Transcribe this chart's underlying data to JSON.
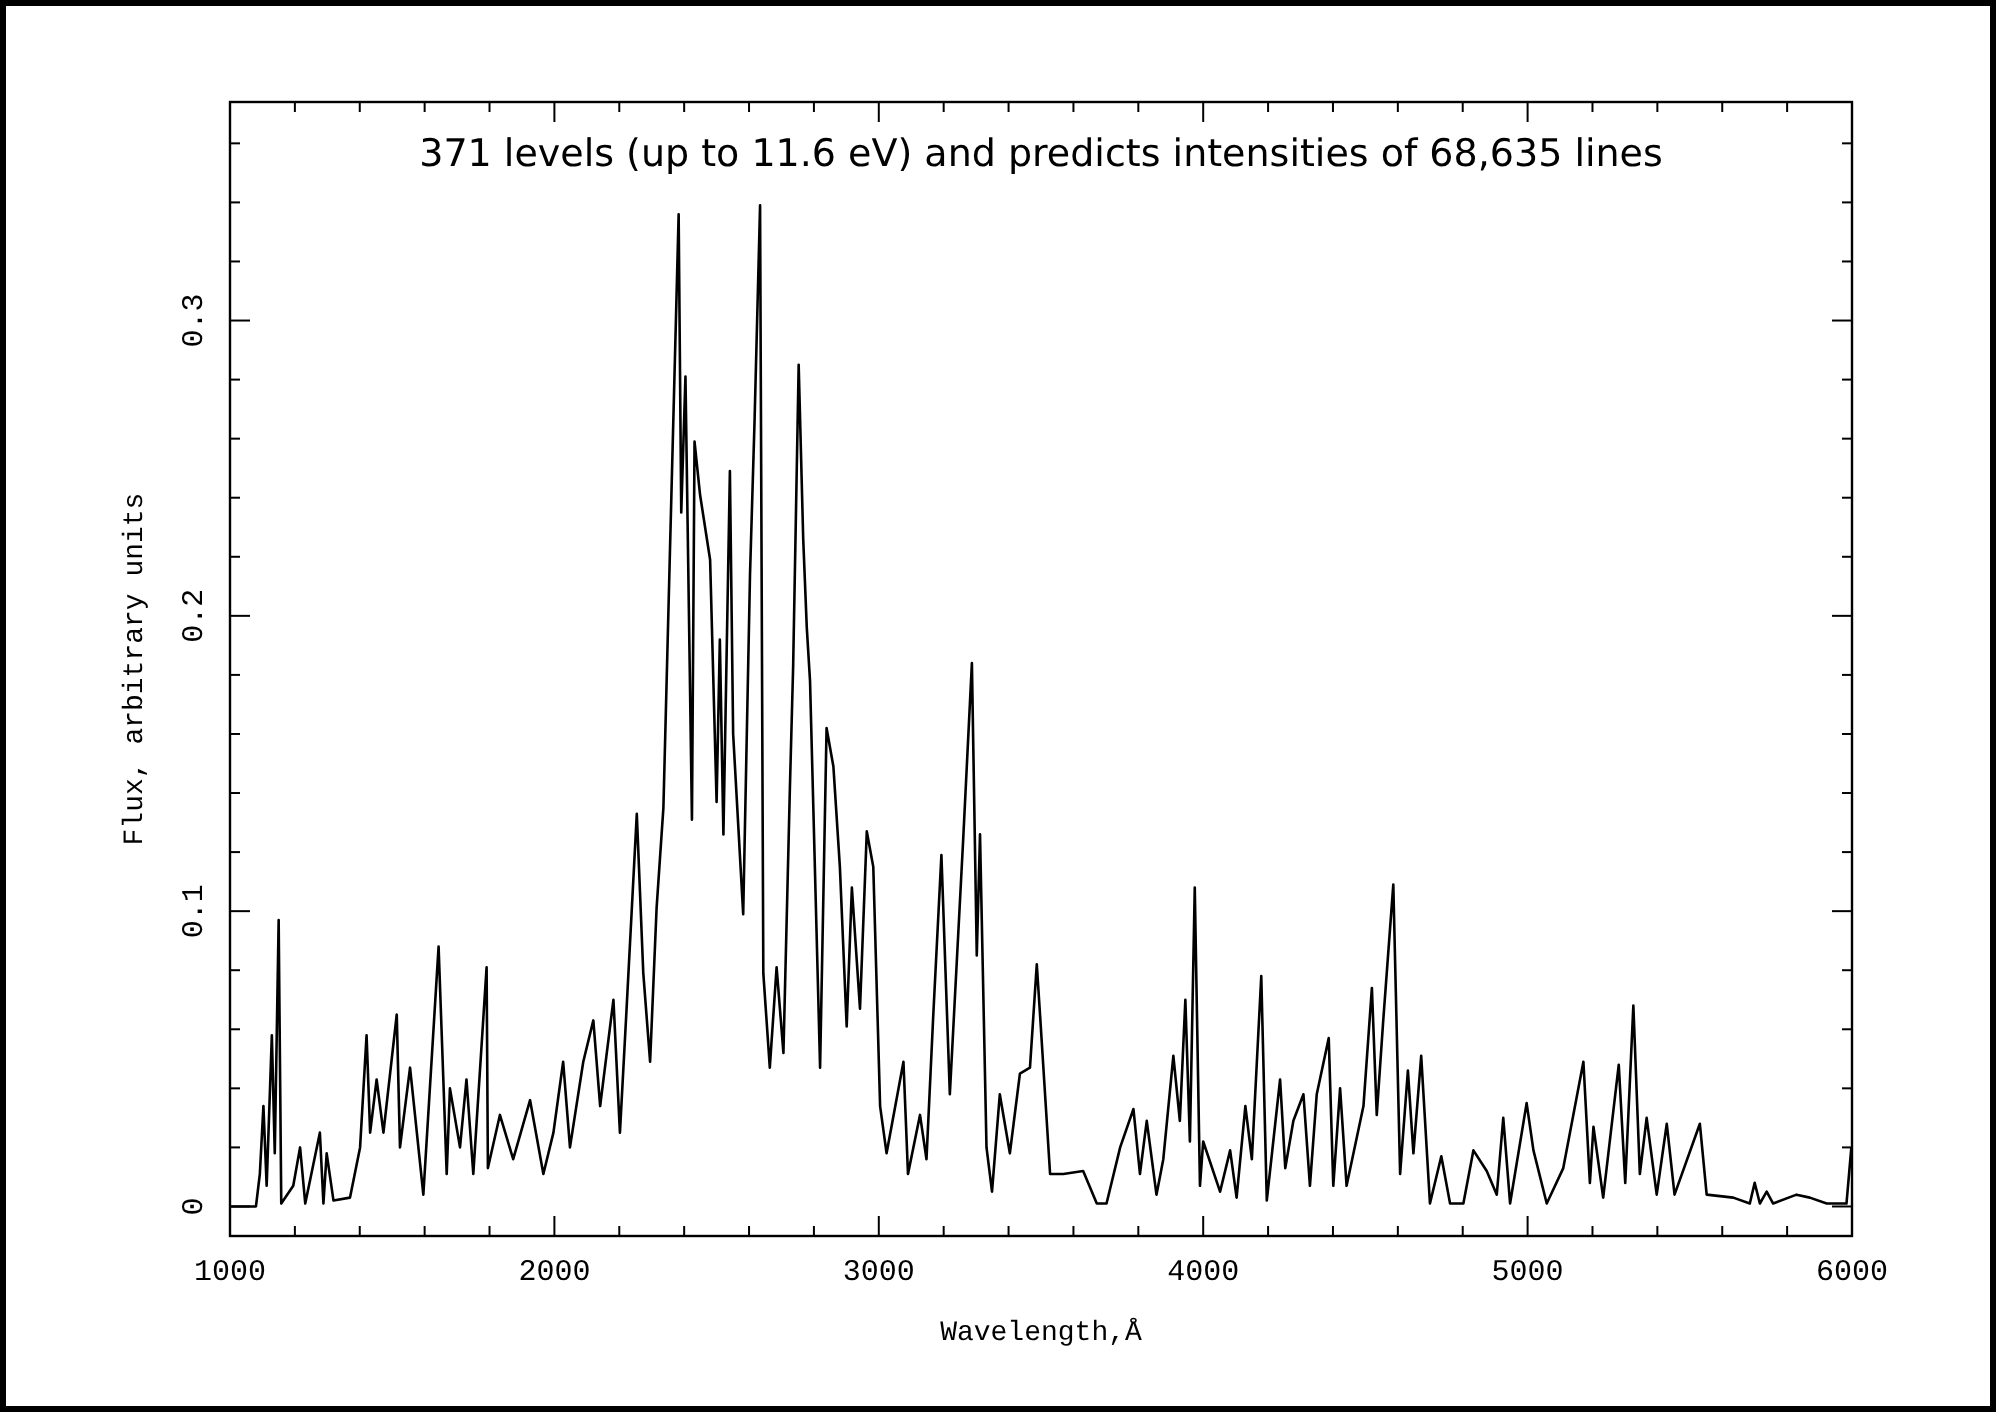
{
  "chart_data": {
    "type": "line",
    "title": "371 levels (up to 11.6 eV) and predicts intensities of 68,635 lines",
    "xlabel": "Wavelength,Å",
    "ylabel": "Flux, arbitrary units",
    "xlim": [
      1000,
      6000
    ],
    "ylim": [
      -0.01,
      0.374
    ],
    "xticks": [
      1000,
      {
        "value": 1200,
        "label": null
      },
      {
        "value": 1400,
        "label": null
      },
      {
        "value": 1600,
        "label": null
      },
      {
        "value": 1800,
        "label": null
      },
      2000,
      {
        "value": 2200,
        "label": null
      },
      {
        "value": 2400,
        "label": null
      },
      {
        "value": 2600,
        "label": null
      },
      {
        "value": 2800,
        "label": null
      },
      3000,
      {
        "value": 3200,
        "label": null
      },
      {
        "value": 3400,
        "label": null
      },
      {
        "value": 3600,
        "label": null
      },
      {
        "value": 3800,
        "label": null
      },
      4000,
      {
        "value": 4200,
        "label": null
      },
      {
        "value": 4400,
        "label": null
      },
      {
        "value": 4600,
        "label": null
      },
      {
        "value": 4800,
        "label": null
      },
      5000,
      {
        "value": 5200,
        "label": null
      },
      {
        "value": 5400,
        "label": null
      },
      {
        "value": 5600,
        "label": null
      },
      {
        "value": 5800,
        "label": null
      },
      6000
    ],
    "yticks": [
      0,
      {
        "value": 0.02,
        "label": null
      },
      {
        "value": 0.04,
        "label": null
      },
      {
        "value": 0.06,
        "label": null
      },
      {
        "value": 0.08,
        "label": null
      },
      0.1,
      {
        "value": 0.12,
        "label": null
      },
      {
        "value": 0.14,
        "label": null
      },
      {
        "value": 0.16,
        "label": null
      },
      {
        "value": 0.18,
        "label": null
      },
      0.2,
      {
        "value": 0.22,
        "label": null
      },
      {
        "value": 0.24,
        "label": null
      },
      {
        "value": 0.26,
        "label": null
      },
      {
        "value": 0.28,
        "label": null
      },
      0.3,
      {
        "value": 0.32,
        "label": null
      },
      {
        "value": 0.34,
        "label": null
      },
      {
        "value": 0.36,
        "label": null
      }
    ],
    "grid": false,
    "series": [
      {
        "color": "#000000",
        "x": [
          1000,
          1080,
          1092,
          1103,
          1113,
          1129,
          1138,
          1150,
          1158,
          1195,
          1216,
          1232,
          1277,
          1288,
          1298,
          1319,
          1370,
          1401,
          1421,
          1432,
          1452,
          1473,
          1514,
          1524,
          1555,
          1596,
          1643,
          1668,
          1678,
          1709,
          1729,
          1750,
          1791,
          1795,
          1832,
          1873,
          1925,
          1966,
          1997,
          2027,
          2048,
          2089,
          2120,
          2141,
          2182,
          2202,
          2223,
          2254,
          2274,
          2295,
          2315,
          2336,
          2356,
          2383,
          2391,
          2404,
          2424,
          2432,
          2449,
          2480,
          2500,
          2510,
          2521,
          2541,
          2551,
          2582,
          2603,
          2617,
          2634,
          2644,
          2664,
          2685,
          2706,
          2726,
          2736,
          2753,
          2767,
          2778,
          2788,
          2819,
          2839,
          2860,
          2880,
          2901,
          2917,
          2942,
          2963,
          2983,
          3004,
          3024,
          3076,
          3090,
          3127,
          3147,
          3168,
          3193,
          3219,
          3260,
          3287,
          3302,
          3312,
          3332,
          3349,
          3373,
          3404,
          3435,
          3466,
          3487,
          3497,
          3528,
          3569,
          3630,
          3672,
          3702,
          3744,
          3785,
          3805,
          3826,
          3856,
          3877,
          3908,
          3928,
          3945,
          3959,
          3974,
          3990,
          4000,
          4052,
          4083,
          4103,
          4130,
          4150,
          4179,
          4196,
          4237,
          4253,
          4278,
          4309,
          4329,
          4350,
          4387,
          4401,
          4422,
          4442,
          4494,
          4520,
          4535,
          4555,
          4586,
          4607,
          4631,
          4648,
          4672,
          4699,
          4734,
          4761,
          4802,
          4833,
          4874,
          4905,
          4925,
          4946,
          4997,
          5018,
          5059,
          5110,
          5172,
          5192,
          5203,
          5233,
          5281,
          5301,
          5326,
          5346,
          5367,
          5398,
          5429,
          5453,
          5531,
          5552,
          5634,
          5685,
          5700,
          5716,
          5737,
          5757,
          5829,
          5870,
          5922,
          5983,
          5998
        ],
        "values": [
          0,
          0,
          0.011,
          0.034,
          0.007,
          0.058,
          0.018,
          0.097,
          0.001,
          0.007,
          0.02,
          0.001,
          0.025,
          0.001,
          0.018,
          0.002,
          0.003,
          0.02,
          0.058,
          0.025,
          0.043,
          0.025,
          0.065,
          0.02,
          0.047,
          0.004,
          0.088,
          0.011,
          0.04,
          0.02,
          0.043,
          0.011,
          0.081,
          0.013,
          0.031,
          0.016,
          0.036,
          0.011,
          0.025,
          0.049,
          0.02,
          0.049,
          0.063,
          0.034,
          0.07,
          0.025,
          0.068,
          0.133,
          0.079,
          0.049,
          0.101,
          0.135,
          0.221,
          0.336,
          0.235,
          0.281,
          0.131,
          0.259,
          0.241,
          0.219,
          0.137,
          0.192,
          0.126,
          0.249,
          0.16,
          0.099,
          0.214,
          0.266,
          0.339,
          0.079,
          0.047,
          0.081,
          0.052,
          0.142,
          0.183,
          0.285,
          0.226,
          0.196,
          0.178,
          0.047,
          0.162,
          0.149,
          0.115,
          0.061,
          0.108,
          0.067,
          0.127,
          0.115,
          0.034,
          0.018,
          0.049,
          0.011,
          0.031,
          0.016,
          0.065,
          0.119,
          0.038,
          0.124,
          0.184,
          0.085,
          0.126,
          0.02,
          0.005,
          0.038,
          0.018,
          0.045,
          0.047,
          0.082,
          0.065,
          0.011,
          0.011,
          0.012,
          0.001,
          0.001,
          0.02,
          0.033,
          0.011,
          0.029,
          0.004,
          0.016,
          0.051,
          0.029,
          0.07,
          0.022,
          0.108,
          0.007,
          0.022,
          0.005,
          0.019,
          0.003,
          0.034,
          0.016,
          0.078,
          0.002,
          0.043,
          0.013,
          0.029,
          0.038,
          0.007,
          0.038,
          0.057,
          0.007,
          0.04,
          0.007,
          0.034,
          0.074,
          0.031,
          0.063,
          0.109,
          0.011,
          0.046,
          0.018,
          0.051,
          0.001,
          0.017,
          0.001,
          0.001,
          0.019,
          0.012,
          0.004,
          0.03,
          0.001,
          0.035,
          0.019,
          0.001,
          0.013,
          0.049,
          0.008,
          0.027,
          0.003,
          0.048,
          0.008,
          0.068,
          0.011,
          0.03,
          0.004,
          0.028,
          0.004,
          0.028,
          0.004,
          0.003,
          0.001,
          0.008,
          0.001,
          0.005,
          0.001,
          0.004,
          0.003,
          0.001,
          0.001,
          0.02
        ]
      }
    ]
  }
}
